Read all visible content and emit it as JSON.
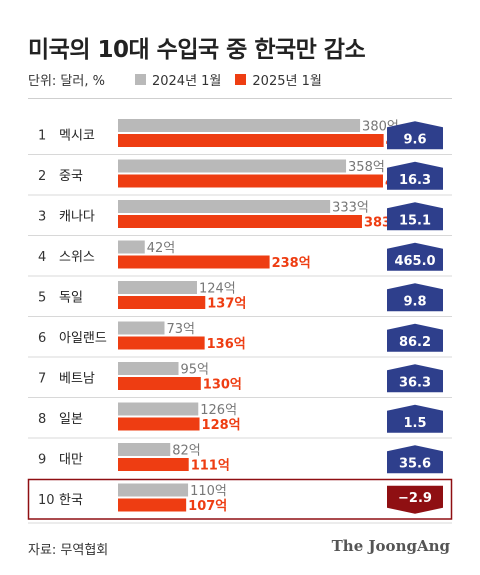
{
  "title": "미국의 10대 수입국 중 한국만 감소",
  "legend": {
    "unit": "단위: 달러, %",
    "series_2024": "2024년 1월",
    "series_2025": "2025년 1월"
  },
  "colors": {
    "series_2024": "#b9b9b9",
    "series_2025": "#ee3d12",
    "badge_positive": "#2e3f8c",
    "badge_negative": "#8f0f12",
    "highlight_border": "#8f0f12"
  },
  "chart_data": {
    "type": "bar",
    "orientation": "horizontal",
    "value_suffix": "억",
    "categories": [
      "멕시코",
      "중국",
      "캐나다",
      "스위스",
      "독일",
      "아일랜드",
      "베트남",
      "일본",
      "대만",
      "한국"
    ],
    "ranks": [
      "1",
      "2",
      "3",
      "4",
      "5",
      "6",
      "7",
      "8",
      "9",
      "10"
    ],
    "series": [
      {
        "name": "2024년 1월",
        "values": [
          380,
          358,
          333,
          42,
          124,
          73,
          95,
          126,
          82,
          110
        ]
      },
      {
        "name": "2025년 1월",
        "values": [
          417,
          416,
          383,
          238,
          137,
          136,
          130,
          128,
          111,
          107
        ]
      }
    ],
    "change_pct": [
      "9.6",
      "16.3",
      "15.1",
      "465.0",
      "9.8",
      "86.2",
      "36.3",
      "1.5",
      "35.6",
      "−2.9"
    ],
    "highlight": "한국"
  },
  "source": "자료: 무역협회",
  "brand": "The JoongAng"
}
